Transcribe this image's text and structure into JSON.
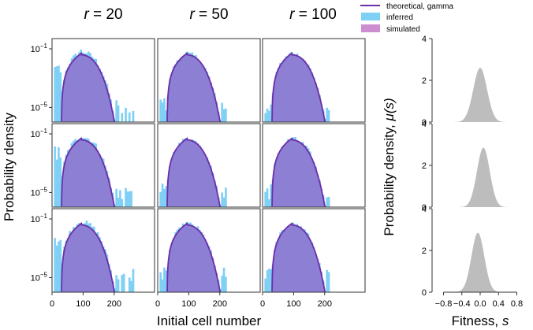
{
  "figure": {
    "column_titles": [
      {
        "var": "r",
        "eq": " = 20"
      },
      {
        "var": "r",
        "eq": " = 50"
      },
      {
        "var": "r",
        "eq": " = 100"
      }
    ],
    "left_ylabel": "Probability density",
    "left_xlabel": "Initial cell number",
    "right_ylabel_text": "Probability density, ",
    "right_ylabel_var": "μ(s)",
    "right_xlabel_text": "Fitness, ",
    "right_xlabel_var": "s",
    "legend": [
      {
        "label": "theoretical, gamma",
        "kind": "line",
        "color": "#6a2fa8"
      },
      {
        "label": "inferred",
        "kind": "box",
        "color": "#7fd0f5"
      },
      {
        "label": "simulated",
        "kind": "box",
        "color": "#cc8ed1"
      }
    ]
  },
  "chart_data": [
    {
      "type": "area",
      "name": "initial cell number distributions",
      "grid": "3x3",
      "x_ticks": [
        "0",
        "100",
        "200"
      ],
      "x_tick_values": [
        0,
        100,
        200
      ],
      "xlim": [
        0,
        330
      ],
      "y_scale": "log",
      "y_ticks": [
        "10^-1",
        "10^-5"
      ],
      "y_tick_values": [
        0.1,
        1e-05
      ],
      "ylim": [
        1e-06,
        0.5
      ],
      "curve": {
        "shape": "gamma",
        "peak_x": 95,
        "peak_y": 0.05,
        "x_start": 30,
        "x_end": 205
      },
      "inferred_extent_x": {
        "r=20": 260,
        "r=50": 220,
        "r=100": 215
      },
      "legend": [
        "theoretical, gamma",
        "inferred",
        "simulated"
      ],
      "colors": {
        "theoretical": "#6a2fa8",
        "inferred": "#7fd0f5",
        "simulated": "#cc8ed1",
        "overlap": "#8c7fd4"
      }
    },
    {
      "type": "area",
      "name": "fitness distributions",
      "xlabel": "Fitness, s",
      "ylabel": "Probability density, μ(s)",
      "x_ticks": [
        "-0.8",
        "-0.4",
        "0.0",
        "0.4",
        "0.8"
      ],
      "x_tick_values": [
        -0.8,
        -0.4,
        0.0,
        0.4,
        0.8
      ],
      "xlim": [
        -1.05,
        1.05
      ],
      "y_ticks": [
        "0",
        "2",
        "4"
      ],
      "y_tick_values": [
        0,
        2,
        4
      ],
      "ylim": [
        0,
        4
      ],
      "panels": [
        {
          "mean": 0.0,
          "sd": 0.15,
          "peak": 2.6
        },
        {
          "mean": 0.07,
          "sd": 0.14,
          "peak": 2.85
        },
        {
          "mean": -0.05,
          "sd": 0.14,
          "peak": 2.85
        }
      ],
      "color": "#bdbdbd"
    }
  ]
}
